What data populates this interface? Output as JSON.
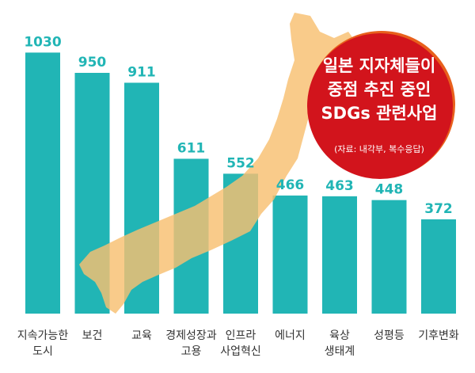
{
  "chart_data": {
    "type": "bar",
    "title_lines": [
      "일본 지자체들이",
      "중점 추진 중인",
      "SDGs 관련사업"
    ],
    "source": "(자료: 내각부, 복수응답)",
    "categories": [
      [
        "지속가능한",
        "도시"
      ],
      [
        "보건"
      ],
      [
        "교육"
      ],
      [
        "경제성장과",
        "고용"
      ],
      [
        "인프라",
        "사업혁신"
      ],
      [
        "에너지"
      ],
      [
        "육상",
        "생태계"
      ],
      [
        "성평등"
      ],
      [
        "기후변화"
      ]
    ],
    "values": [
      1030,
      950,
      911,
      611,
      552,
      466,
      463,
      448,
      372
    ],
    "value_labels": [
      "1030",
      "950",
      "911",
      "611",
      "552",
      "466",
      "463",
      "448",
      "372"
    ],
    "ylim": [
      0,
      1100
    ],
    "grid": false,
    "legend": "none"
  },
  "colors": {
    "bar": "#21b5b5",
    "value_label": "#21b5b5",
    "map": "#f8c070",
    "badge": "#d2141c",
    "badge_ring": "#e8601c",
    "category_text": "#333333"
  },
  "decorations": {
    "background_image": "japan-map-silhouette",
    "badge": "red-circle-title"
  }
}
